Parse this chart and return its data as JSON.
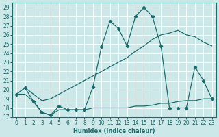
{
  "xlabel": "Humidex (Indice chaleur)",
  "bg_color": "#cce8e8",
  "grid_color": "#ffffff",
  "line_color": "#1a6b6b",
  "xlim": [
    -0.5,
    23.5
  ],
  "ylim": [
    17,
    29.5
  ],
  "yticks": [
    17,
    18,
    19,
    20,
    21,
    22,
    23,
    24,
    25,
    26,
    27,
    28,
    29
  ],
  "xticks": [
    0,
    1,
    2,
    3,
    4,
    5,
    6,
    7,
    8,
    9,
    10,
    11,
    12,
    13,
    14,
    15,
    16,
    17,
    18,
    19,
    20,
    21,
    22,
    23
  ],
  "line1_x": [
    0,
    1,
    2,
    3,
    4,
    5,
    6,
    7,
    8,
    9,
    10,
    11,
    12,
    13,
    14,
    15,
    16,
    17,
    18,
    19,
    20,
    21,
    22,
    23
  ],
  "line1_y": [
    19.5,
    20.2,
    18.7,
    17.5,
    17.2,
    18.2,
    17.8,
    17.8,
    17.8,
    20.3,
    24.7,
    27.5,
    26.7,
    24.8,
    28.0,
    29.0,
    28.0,
    24.8,
    18.0,
    18.0,
    18.0,
    22.5,
    21.0,
    19.0
  ],
  "line2_x": [
    0,
    1,
    2,
    3,
    4,
    5,
    6,
    7,
    8,
    9,
    10,
    11,
    12,
    13,
    14,
    15,
    16,
    17,
    18,
    19,
    20,
    21,
    22,
    23
  ],
  "line2_y": [
    19.5,
    20.2,
    19.5,
    18.8,
    19.0,
    19.5,
    20.0,
    20.5,
    21.0,
    21.5,
    22.0,
    22.5,
    23.0,
    23.5,
    24.2,
    24.8,
    25.5,
    26.0,
    26.2,
    26.5,
    26.0,
    25.8,
    25.2,
    24.8
  ],
  "line3_x": [
    0,
    1,
    2,
    3,
    4,
    5,
    6,
    7,
    8,
    9,
    10,
    11,
    12,
    13,
    14,
    15,
    16,
    17,
    18,
    19,
    20,
    21,
    22,
    23
  ],
  "line3_y": [
    19.5,
    19.5,
    18.7,
    17.5,
    17.2,
    17.8,
    17.8,
    17.8,
    17.8,
    18.0,
    18.0,
    18.0,
    18.0,
    18.0,
    18.2,
    18.2,
    18.3,
    18.5,
    18.5,
    18.7,
    18.8,
    18.8,
    19.0,
    19.0
  ]
}
